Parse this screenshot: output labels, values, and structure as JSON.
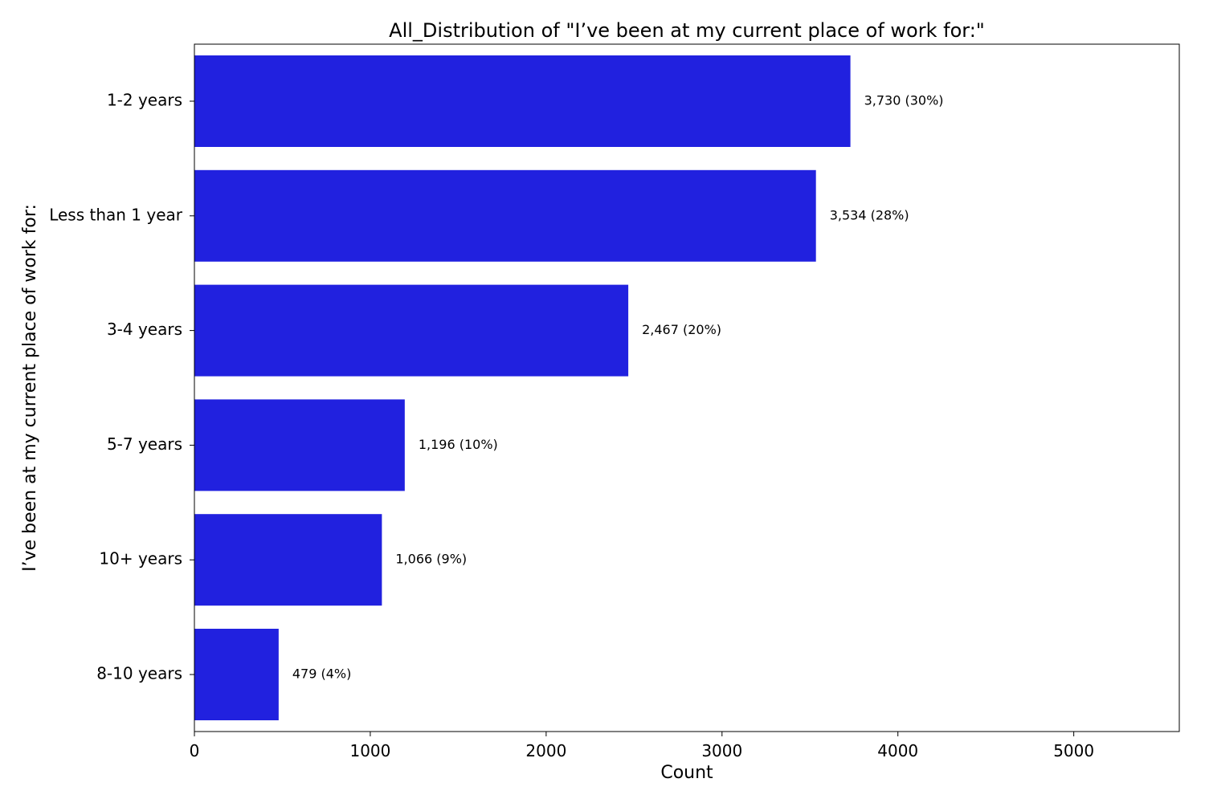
{
  "chart_data": {
    "type": "bar",
    "orientation": "horizontal",
    "title": "All_Distribution of \"I’ve been at my current place of work for:\"",
    "xlabel": "Count",
    "ylabel": "I’ve been at my current place of work for:",
    "categories": [
      "1-2 years",
      "Less than 1 year",
      "3-4 years",
      "5-7 years",
      "10+ years",
      "8-10 years"
    ],
    "values": [
      3730,
      3534,
      2467,
      1196,
      1066,
      479
    ],
    "data_labels": [
      "3,730 (30%)",
      "3,534 (28%)",
      "2,467 (20%)",
      "1,196 (10%)",
      "1,066 (9%)",
      "479 (4%)"
    ],
    "xlim": [
      0,
      5600
    ],
    "xticks": [
      0,
      1000,
      2000,
      3000,
      4000,
      5000
    ],
    "grid": false,
    "bar_color": "#2121df"
  }
}
